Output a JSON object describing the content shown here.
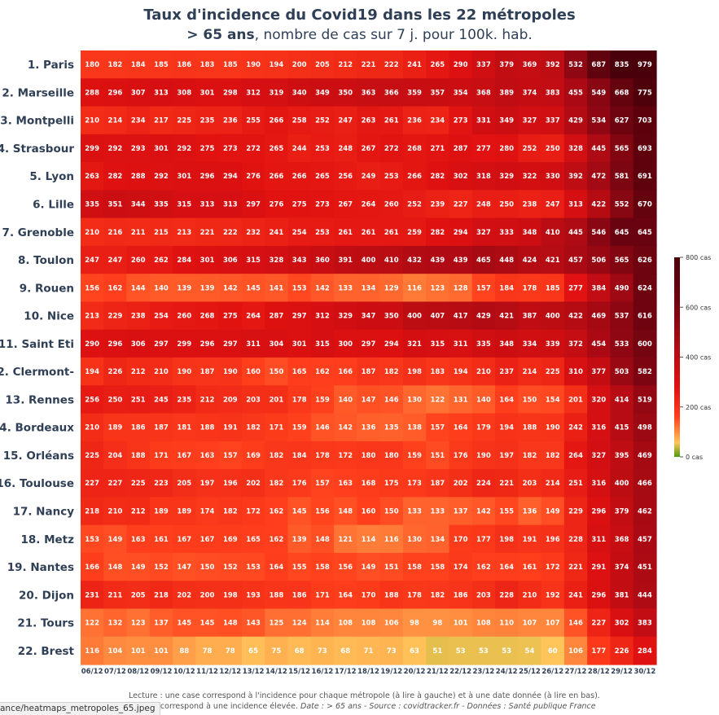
{
  "title": {
    "line1": "Taux d'incidence du Covid19 dans les 22 métropoles",
    "line2_bold": "> 65 ans",
    "line2_rest": ", nombre de cas sur 7 j. pour 100k. hab."
  },
  "footer": {
    "line1": "Lecture : une case correspond à l'incidence pour chaque métropole (à lire à gauche) et à une date donnée (à lire en bas).",
    "line2_left": "uge correspond à une incidence élevée.",
    "line2_italic": "Date : > 65 ans - Source : covidtracker.fr - Données : Santé publique France"
  },
  "filename_tooltip": "ance/heatmaps_metropoles_65.jpeg",
  "colors": {
    "title": "#2f3f56",
    "scale": [
      "#4c9a0a",
      "#ffc55a",
      "#ff3f1c",
      "#e01111",
      "#b00b14",
      "#6e0410",
      "#4a000a"
    ]
  },
  "colorbar": {
    "ticks": [
      {
        "value": 800,
        "label": "800 cas"
      },
      {
        "value": 600,
        "label": "600 cas"
      },
      {
        "value": 400,
        "label": "400 cas"
      },
      {
        "value": 200,
        "label": "200 cas"
      },
      {
        "value": 0,
        "label": "0 cas"
      }
    ]
  },
  "chart_data": {
    "type": "heatmap",
    "zlim": [
      0,
      800
    ],
    "x": [
      "06/12",
      "07/12",
      "08/12",
      "09/12",
      "10/12",
      "11/12",
      "12/12",
      "13/12",
      "14/12",
      "15/12",
      "16/12",
      "17/12",
      "18/12",
      "19/12",
      "20/12",
      "21/12",
      "22/12",
      "23/12",
      "24/12",
      "25/12",
      "26/12",
      "27/12",
      "28/12",
      "29/12",
      "30/12"
    ],
    "y": [
      "1. Paris",
      "2. Marseille",
      "3. Montpelli",
      "4. Strasbour",
      "5. Lyon",
      "6. Lille",
      "7. Grenoble",
      "8. Toulon",
      "9. Rouen",
      "10. Nice",
      "11. Saint Eti",
      "12. Clermont-",
      "13. Rennes",
      "14. Bordeaux",
      "15. Orléans",
      "16. Toulouse",
      "17. Nancy",
      "18. Metz",
      "19. Nantes",
      "20. Dijon",
      "21. Tours",
      "22. Brest"
    ],
    "values": [
      [
        180,
        182,
        184,
        185,
        186,
        183,
        185,
        190,
        194,
        200,
        205,
        212,
        221,
        222,
        241,
        265,
        290,
        337,
        379,
        369,
        392,
        532,
        687,
        835,
        979
      ],
      [
        288,
        296,
        307,
        313,
        308,
        301,
        298,
        312,
        319,
        340,
        349,
        350,
        363,
        366,
        359,
        357,
        354,
        368,
        389,
        374,
        383,
        455,
        549,
        668,
        775
      ],
      [
        210,
        214,
        234,
        217,
        225,
        235,
        236,
        255,
        266,
        258,
        252,
        247,
        263,
        261,
        236,
        234,
        273,
        331,
        349,
        327,
        337,
        429,
        534,
        627,
        703
      ],
      [
        299,
        292,
        293,
        301,
        292,
        275,
        273,
        272,
        265,
        244,
        253,
        248,
        267,
        272,
        268,
        271,
        287,
        277,
        280,
        252,
        250,
        328,
        445,
        565,
        693
      ],
      [
        263,
        282,
        288,
        292,
        301,
        296,
        294,
        276,
        266,
        266,
        265,
        256,
        249,
        253,
        266,
        282,
        302,
        318,
        329,
        322,
        330,
        392,
        472,
        581,
        691
      ],
      [
        335,
        351,
        344,
        335,
        315,
        313,
        313,
        297,
        276,
        275,
        273,
        267,
        264,
        260,
        252,
        239,
        227,
        248,
        250,
        238,
        247,
        313,
        422,
        552,
        670
      ],
      [
        210,
        216,
        211,
        215,
        213,
        221,
        222,
        232,
        241,
        254,
        253,
        261,
        261,
        261,
        259,
        282,
        294,
        327,
        333,
        348,
        410,
        445,
        546,
        645,
        645
      ],
      [
        247,
        247,
        260,
        262,
        284,
        301,
        306,
        315,
        328,
        343,
        360,
        391,
        400,
        410,
        432,
        439,
        439,
        465,
        448,
        424,
        421,
        457,
        506,
        565,
        626
      ],
      [
        156,
        162,
        144,
        140,
        139,
        139,
        142,
        145,
        141,
        153,
        142,
        133,
        134,
        129,
        116,
        123,
        128,
        157,
        184,
        178,
        185,
        277,
        384,
        490,
        624
      ],
      [
        213,
        229,
        238,
        254,
        260,
        268,
        275,
        264,
        287,
        297,
        312,
        329,
        347,
        350,
        400,
        407,
        417,
        429,
        421,
        387,
        400,
        422,
        469,
        537,
        616
      ],
      [
        290,
        296,
        306,
        297,
        299,
        296,
        297,
        311,
        304,
        301,
        315,
        300,
        297,
        294,
        321,
        315,
        311,
        335,
        348,
        334,
        339,
        372,
        454,
        533,
        600
      ],
      [
        194,
        226,
        212,
        210,
        190,
        187,
        190,
        160,
        150,
        165,
        162,
        166,
        187,
        182,
        198,
        183,
        194,
        210,
        237,
        214,
        225,
        310,
        377,
        503,
        582
      ],
      [
        256,
        250,
        251,
        245,
        235,
        212,
        209,
        203,
        201,
        178,
        159,
        140,
        147,
        146,
        130,
        122,
        131,
        140,
        164,
        150,
        154,
        201,
        320,
        414,
        519
      ],
      [
        210,
        189,
        186,
        187,
        181,
        188,
        191,
        182,
        171,
        159,
        146,
        142,
        136,
        135,
        138,
        157,
        164,
        179,
        194,
        188,
        190,
        242,
        316,
        415,
        498
      ],
      [
        225,
        204,
        188,
        171,
        167,
        163,
        157,
        169,
        182,
        184,
        178,
        172,
        180,
        180,
        159,
        151,
        176,
        190,
        197,
        182,
        182,
        264,
        327,
        395,
        469
      ],
      [
        227,
        227,
        225,
        223,
        205,
        197,
        196,
        202,
        182,
        176,
        157,
        163,
        168,
        175,
        173,
        187,
        202,
        224,
        221,
        203,
        214,
        251,
        316,
        400,
        466
      ],
      [
        218,
        210,
        212,
        189,
        189,
        174,
        182,
        172,
        162,
        145,
        156,
        148,
        160,
        150,
        133,
        133,
        137,
        142,
        155,
        136,
        149,
        229,
        296,
        379,
        462
      ],
      [
        153,
        149,
        163,
        161,
        167,
        167,
        169,
        165,
        162,
        139,
        148,
        121,
        114,
        116,
        130,
        134,
        170,
        177,
        198,
        191,
        196,
        228,
        311,
        368,
        457
      ],
      [
        166,
        148,
        149,
        152,
        147,
        150,
        152,
        153,
        164,
        155,
        158,
        156,
        149,
        151,
        158,
        158,
        174,
        162,
        164,
        161,
        172,
        221,
        291,
        374,
        451
      ],
      [
        231,
        211,
        205,
        218,
        202,
        200,
        198,
        193,
        188,
        186,
        171,
        164,
        170,
        188,
        178,
        182,
        186,
        203,
        228,
        210,
        192,
        241,
        296,
        381,
        444
      ],
      [
        122,
        132,
        123,
        137,
        145,
        145,
        148,
        143,
        125,
        124,
        114,
        108,
        108,
        106,
        98,
        98,
        101,
        108,
        110,
        107,
        107,
        146,
        227,
        302,
        383
      ],
      [
        116,
        104,
        101,
        101,
        88,
        78,
        78,
        65,
        75,
        68,
        73,
        68,
        71,
        73,
        63,
        51,
        53,
        53,
        53,
        54,
        60,
        106,
        177,
        226,
        284
      ]
    ]
  }
}
